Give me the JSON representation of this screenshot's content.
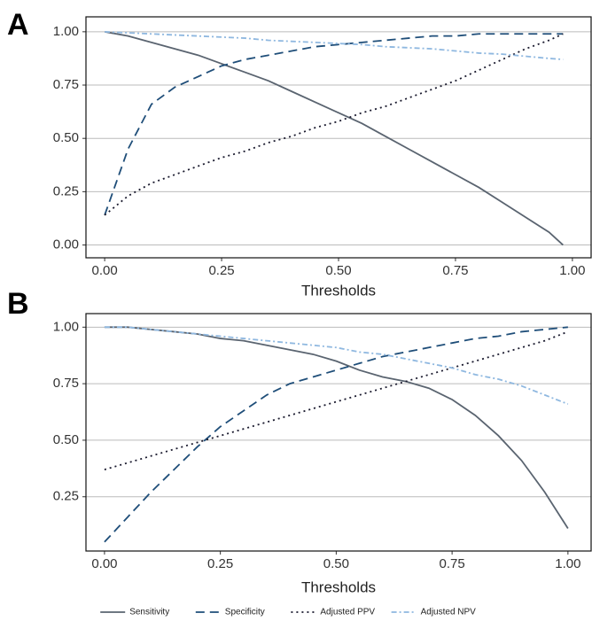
{
  "chart_data": [
    {
      "type": "line",
      "panel": "A",
      "xlabel": "Thresholds",
      "grid": "y",
      "legend": "bottom",
      "x": [
        0,
        0.05,
        0.1,
        0.15,
        0.2,
        0.25,
        0.3,
        0.35,
        0.4,
        0.45,
        0.5,
        0.55,
        0.6,
        0.65,
        0.7,
        0.75,
        0.8,
        0.85,
        0.9,
        0.95,
        0.98
      ],
      "xlim": [
        -0.04,
        1.04
      ],
      "ylim": [
        -0.06,
        1.07
      ],
      "xticks": [
        {
          "value": 0,
          "label": "0.00"
        },
        {
          "value": 0.25,
          "label": "0.25"
        },
        {
          "value": 0.5,
          "label": "0.50"
        },
        {
          "value": 0.75,
          "label": "0.75"
        },
        {
          "value": 1,
          "label": "1.00"
        }
      ],
      "yticks": [
        {
          "value": 0,
          "label": "0.00"
        },
        {
          "value": 0.25,
          "label": "0.25"
        },
        {
          "value": 0.5,
          "label": "0.50"
        },
        {
          "value": 0.75,
          "label": "0.75"
        },
        {
          "value": 1,
          "label": "1.00"
        }
      ],
      "series": [
        {
          "name": "Sensitivity",
          "color": "#5a6470",
          "style": "solid",
          "values": [
            1.0,
            0.98,
            0.95,
            0.92,
            0.89,
            0.85,
            0.81,
            0.77,
            0.72,
            0.67,
            0.62,
            0.57,
            0.51,
            0.45,
            0.39,
            0.33,
            0.27,
            0.2,
            0.13,
            0.06,
            0.0
          ]
        },
        {
          "name": "Specificity",
          "color": "#1f4e79",
          "style": "dashed",
          "values": [
            0.14,
            0.45,
            0.66,
            0.74,
            0.79,
            0.84,
            0.87,
            0.89,
            0.91,
            0.93,
            0.94,
            0.95,
            0.96,
            0.97,
            0.98,
            0.98,
            0.99,
            0.99,
            0.99,
            0.99,
            0.99
          ]
        },
        {
          "name": "Adjusted PPV",
          "color": "#1a1a2e",
          "style": "dotted",
          "values": [
            0.14,
            0.23,
            0.29,
            0.33,
            0.37,
            0.41,
            0.44,
            0.48,
            0.51,
            0.55,
            0.58,
            0.62,
            0.65,
            0.69,
            0.73,
            0.77,
            0.82,
            0.87,
            0.92,
            0.96,
            0.99
          ]
        },
        {
          "name": "Adjusted NPV",
          "color": "#8fb8e0",
          "style": "dashdot",
          "values": [
            1.0,
            0.995,
            0.99,
            0.985,
            0.98,
            0.975,
            0.97,
            0.96,
            0.955,
            0.95,
            0.945,
            0.94,
            0.93,
            0.925,
            0.92,
            0.91,
            0.9,
            0.895,
            0.885,
            0.875,
            0.87
          ]
        }
      ]
    },
    {
      "type": "line",
      "panel": "B",
      "xlabel": "Thresholds",
      "grid": "y",
      "x": [
        0,
        0.05,
        0.1,
        0.15,
        0.2,
        0.25,
        0.3,
        0.35,
        0.4,
        0.45,
        0.5,
        0.55,
        0.6,
        0.65,
        0.7,
        0.75,
        0.8,
        0.85,
        0.9,
        0.95,
        1.0
      ],
      "xlim": [
        -0.04,
        1.05
      ],
      "ylim": [
        0.01,
        1.06
      ],
      "xticks": [
        {
          "value": 0,
          "label": "0.00"
        },
        {
          "value": 0.25,
          "label": "0.25"
        },
        {
          "value": 0.5,
          "label": "0.50"
        },
        {
          "value": 0.75,
          "label": "0.75"
        },
        {
          "value": 1,
          "label": "1.00"
        }
      ],
      "yticks": [
        {
          "value": 0.25,
          "label": "0.25"
        },
        {
          "value": 0.5,
          "label": "0.50"
        },
        {
          "value": 0.75,
          "label": "0.75"
        },
        {
          "value": 1,
          "label": "1.00"
        }
      ],
      "series": [
        {
          "color": "#5a6470",
          "style": "solid",
          "values": [
            1.0,
            1.0,
            0.99,
            0.98,
            0.97,
            0.95,
            0.94,
            0.92,
            0.9,
            0.88,
            0.85,
            0.81,
            0.78,
            0.76,
            0.73,
            0.68,
            0.61,
            0.52,
            0.41,
            0.27,
            0.11
          ]
        },
        {
          "color": "#1f4e79",
          "style": "dashed",
          "values": [
            0.05,
            0.16,
            0.27,
            0.37,
            0.47,
            0.56,
            0.63,
            0.7,
            0.75,
            0.78,
            0.81,
            0.84,
            0.87,
            0.89,
            0.91,
            0.93,
            0.95,
            0.96,
            0.98,
            0.99,
            1.0
          ]
        },
        {
          "color": "#1a1a2e",
          "style": "dotted",
          "values": [
            0.37,
            0.4,
            0.43,
            0.46,
            0.49,
            0.52,
            0.55,
            0.58,
            0.61,
            0.64,
            0.67,
            0.7,
            0.73,
            0.76,
            0.79,
            0.82,
            0.85,
            0.88,
            0.91,
            0.94,
            0.98
          ]
        },
        {
          "color": "#8fb8e0",
          "style": "dashdot",
          "values": [
            1.0,
            1.0,
            0.99,
            0.98,
            0.97,
            0.96,
            0.95,
            0.94,
            0.93,
            0.92,
            0.91,
            0.89,
            0.88,
            0.86,
            0.84,
            0.82,
            0.79,
            0.77,
            0.74,
            0.7,
            0.66
          ]
        }
      ]
    }
  ]
}
